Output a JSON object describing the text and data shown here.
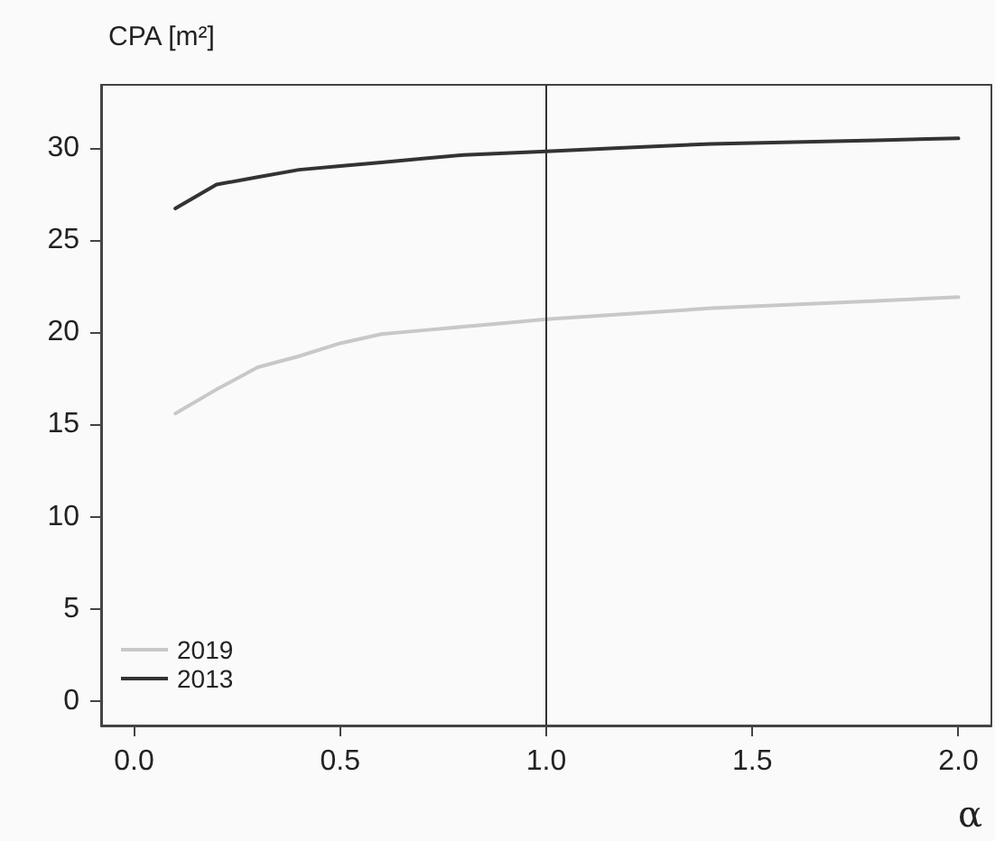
{
  "chart_data": {
    "type": "line",
    "ylabel": "CPA [m²]",
    "xlabel": "α",
    "x": [
      0.1,
      0.2,
      0.3,
      0.4,
      0.5,
      0.6,
      0.7,
      0.8,
      0.9,
      1.0,
      1.2,
      1.4,
      1.6,
      1.8,
      2.0
    ],
    "series": [
      {
        "name": "2019",
        "color": "#c8c8c8",
        "values": [
          15.6,
          16.9,
          18.1,
          18.7,
          19.4,
          19.9,
          20.1,
          20.3,
          20.5,
          20.7,
          21.0,
          21.3,
          21.5,
          21.7,
          21.9
        ]
      },
      {
        "name": "2013",
        "color": "#333333",
        "values": [
          26.7,
          28.0,
          28.4,
          28.8,
          29.0,
          29.2,
          29.4,
          29.6,
          29.7,
          29.8,
          30.0,
          30.2,
          30.3,
          30.4,
          30.5
        ]
      }
    ],
    "xlim": [
      -0.08,
      2.08
    ],
    "xticks": [
      {
        "value": 0,
        "label": "0.0"
      },
      0.5,
      {
        "value": 1,
        "label": "1.0"
      },
      1.5,
      {
        "value": 2,
        "label": "2.0"
      }
    ],
    "ylim": [
      -1.3,
      33.4
    ],
    "yticks": [
      0,
      5,
      10,
      15,
      20,
      25,
      30
    ],
    "ref_lines": [
      {
        "axis": "x",
        "value": 1,
        "color": "#333333"
      }
    ],
    "grid": false,
    "legend": "bottom left",
    "marker": "none",
    "line_style": "solid"
  }
}
